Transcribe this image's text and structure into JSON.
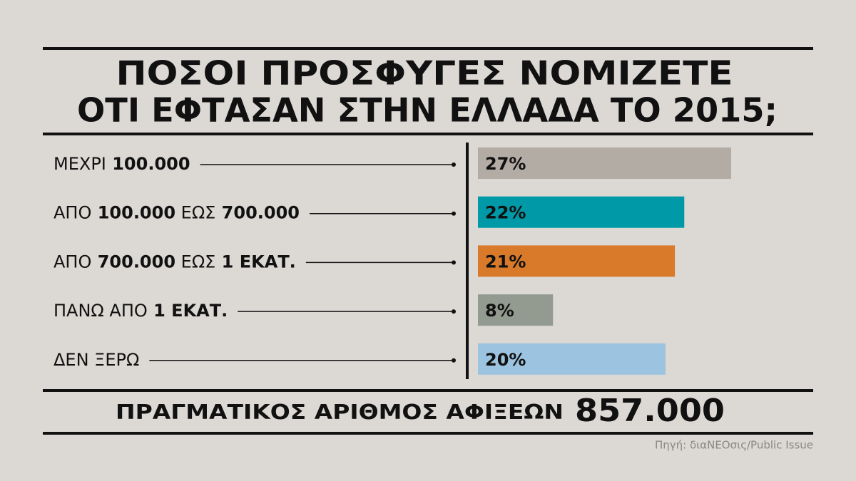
{
  "chart_data": {
    "type": "bar",
    "title": [
      "ΠΟΣΟΙ ΠΡΟΣΦΥΓΕΣ ΝΟΜΙΖΕΤΕ",
      "ΟΤΙ ΕΦΤΑΣΑΝ ΣΤΗΝ ΕΛΛΑΔΑ ΤΟ 2015;"
    ],
    "categories": [
      "ΜΕΧΡΙ 100.000",
      "ΑΠΟ 100.000 ΕΩΣ 700.000",
      "ΑΠΟ 700.000 ΕΩΣ 1 ΕΚΑΤ.",
      "ΠΑΝΩ ΑΠΟ 1 ΕΚΑΤ.",
      "ΔΕΝ ΞΕΡΩ"
    ],
    "values": [
      27,
      22,
      21,
      8,
      20
    ],
    "value_labels": [
      "27%",
      "22%",
      "21%",
      "8%",
      "20%"
    ],
    "colors": [
      "#b3aca4",
      "#0099a8",
      "#d97a2b",
      "#939a90",
      "#9cc4e0"
    ],
    "actual_arrivals": {
      "label": "ΠΡΑΓΜΑΤΙΚΟΣ ΑΡΙΘΜΟΣ ΑΦΙΞΕΩΝ",
      "value": "857.000"
    },
    "source": "Πηγή: διαΝΕΟσις/Public Issue"
  }
}
